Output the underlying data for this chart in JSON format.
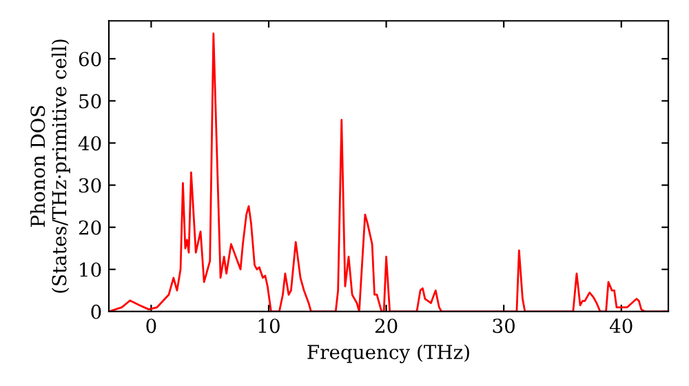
{
  "chart_data": {
    "type": "line",
    "xlabel": "Frequency (THz)",
    "ylabel": "Phonon DOS\n(States/THz·primitive cell)",
    "xlim": [
      -3.6,
      44
    ],
    "ylim": [
      0,
      69
    ],
    "xticks": [
      0,
      10,
      20,
      30,
      40
    ],
    "yticks": [
      0,
      10,
      20,
      30,
      40,
      50,
      60
    ],
    "grid": false,
    "legend": false,
    "series": [
      {
        "color": "#ff0000",
        "x": [
          -3.6,
          -2.5,
          -1.8,
          -1.0,
          -0.2,
          0.5,
          1.5,
          1.9,
          2.2,
          2.5,
          2.7,
          2.9,
          3.05,
          3.2,
          3.4,
          3.8,
          4.2,
          4.5,
          5.0,
          5.3,
          5.9,
          6.2,
          6.4,
          6.8,
          7.6,
          7.8,
          8.1,
          8.3,
          8.5,
          8.8,
          9.0,
          9.2,
          9.5,
          9.7,
          9.9,
          10.2,
          10.9,
          11.2,
          11.4,
          11.7,
          11.9,
          12.3,
          12.7,
          13.0,
          13.4,
          13.6,
          15.7,
          15.9,
          16.2,
          16.5,
          16.8,
          17.1,
          17.5,
          17.7,
          18.2,
          18.4,
          18.8,
          19.0,
          19.2,
          19.6,
          19.8,
          20.0,
          20.3,
          22.6,
          22.9,
          23.1,
          23.3,
          23.8,
          24.2,
          24.5,
          24.7,
          31.1,
          31.3,
          31.6,
          31.8,
          35.9,
          36.2,
          36.5,
          36.7,
          36.9,
          37.3,
          37.6,
          37.9,
          38.2,
          38.7,
          38.9,
          39.2,
          39.4,
          39.6,
          40.1,
          40.5,
          41.3,
          41.5,
          41.7,
          42.0,
          44.0
        ],
        "values": [
          0,
          1,
          2.6,
          1.5,
          0.5,
          1,
          4,
          8,
          5,
          10,
          30.5,
          15,
          17,
          14,
          33,
          14,
          19,
          7,
          12,
          66,
          8,
          13,
          9,
          16,
          10,
          16,
          23,
          25,
          21,
          11,
          10,
          10.5,
          8,
          8.5,
          6,
          0,
          0,
          4,
          9,
          4,
          5,
          16.5,
          8,
          5,
          2,
          0,
          0,
          5,
          45.5,
          6,
          13,
          4,
          2,
          0,
          23,
          21,
          16,
          4,
          4,
          0,
          0,
          13,
          0,
          0,
          5,
          5.5,
          3,
          2,
          5,
          1,
          0,
          0,
          14.5,
          3,
          0,
          0,
          9,
          1.5,
          2.5,
          2.5,
          4.5,
          3.5,
          2,
          0,
          0,
          7,
          5,
          5,
          1,
          1,
          1,
          3,
          2.5,
          0.5,
          0,
          0
        ]
      }
    ]
  }
}
